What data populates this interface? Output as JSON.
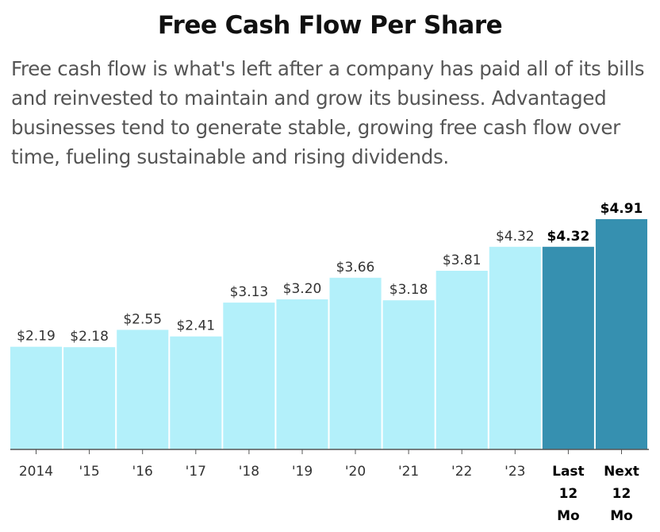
{
  "title": "Free Cash Flow Per Share",
  "description": "Free cash flow is what's left after a company has paid all of its bills and reinvested to maintain and grow its business. Advantaged businesses tend to generate stable, growing free cash flow over time, fueling sustainable and rising dividends.",
  "colors": {
    "historical": "#b3f0fa",
    "projected": "#3690b0",
    "axis": "#555555"
  },
  "chart_data": {
    "type": "bar",
    "categories": [
      "2014",
      "'15",
      "'16",
      "'17",
      "'18",
      "'19",
      "'20",
      "'21",
      "'22",
      "'23",
      "Last 12 Mo",
      "Next 12 Mo"
    ],
    "category_lines": [
      [
        "2014"
      ],
      [
        "'15"
      ],
      [
        "'16"
      ],
      [
        "'17"
      ],
      [
        "'18"
      ],
      [
        "'19"
      ],
      [
        "'20"
      ],
      [
        "'21"
      ],
      [
        "'22"
      ],
      [
        "'23"
      ],
      [
        "Last",
        "12",
        "Mo"
      ],
      [
        "Next",
        "12",
        "Mo"
      ]
    ],
    "values": [
      2.19,
      2.18,
      2.55,
      2.41,
      3.13,
      3.2,
      3.66,
      3.18,
      3.81,
      4.32,
      4.32,
      4.91
    ],
    "value_labels": [
      "$2.19",
      "$2.18",
      "$2.55",
      "$2.41",
      "$3.13",
      "$3.20",
      "$3.66",
      "$3.18",
      "$3.81",
      "$4.32",
      "$4.32",
      "$4.91"
    ],
    "highlighted": [
      false,
      false,
      false,
      false,
      false,
      false,
      false,
      false,
      false,
      false,
      true,
      true
    ],
    "ylim": [
      0,
      4.91
    ],
    "grid": false,
    "legend": "none",
    "xlabel": "",
    "ylabel": ""
  }
}
